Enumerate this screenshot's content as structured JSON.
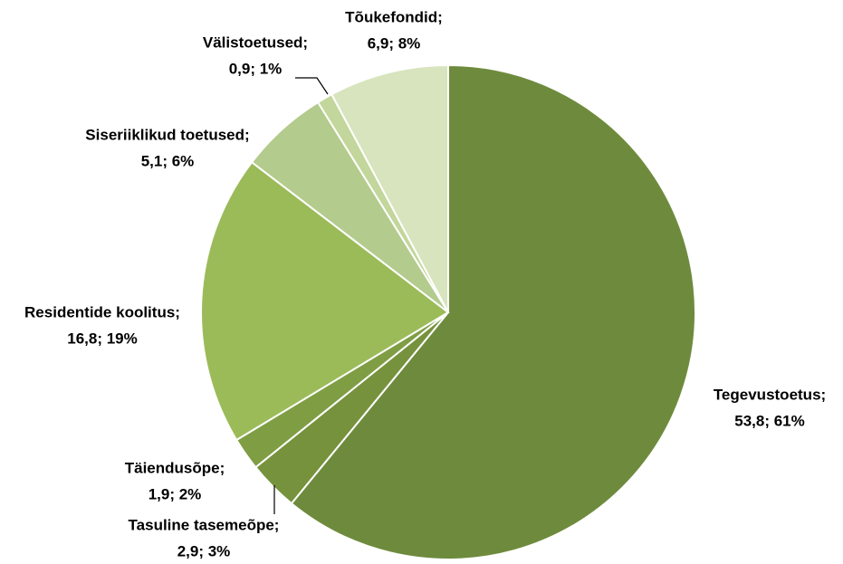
{
  "chart_data": {
    "type": "pie",
    "categories": [
      "Tegevustoetus;",
      "Tasuline tasemeõpe;",
      "Täiendusõpe;",
      "Residentide koolitus;",
      "Siseriiklikud toetused;",
      "Välistoetused;",
      "Tõukefondid;"
    ],
    "values": [
      53.8,
      2.9,
      1.9,
      16.8,
      5.1,
      0.9,
      6.9
    ],
    "value_labels": [
      "53,8; 61%",
      "2,9; 3%",
      "1,9; 2%",
      "16,8; 19%",
      "5,1; 6%",
      "0,9; 1%",
      "6,9; 8%"
    ],
    "colors": [
      "#6e8b3d",
      "#76923c",
      "#7f9e44",
      "#9bbb59",
      "#b3cb8c",
      "#c3d69b",
      "#d7e4bd"
    ]
  }
}
